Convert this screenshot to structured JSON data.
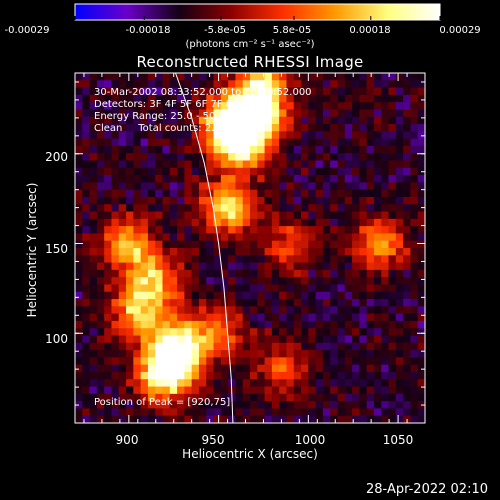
{
  "colorbar": {
    "ticks": [
      "-0.00029",
      "-0.00018",
      "-5.8e-05",
      "5.8e-05",
      "0.00018",
      "0.00029"
    ],
    "tick_values": [
      -0.00029,
      -0.00018,
      -5.8e-05,
      5.8e-05,
      0.00018,
      0.00029
    ],
    "range": [
      -0.00029,
      0.00029
    ],
    "units": "(photons cm⁻² s⁻¹ asec⁻²)",
    "colors": [
      "#0000ff",
      "#6a00c8",
      "#140014",
      "#8c0000",
      "#ff3000",
      "#ff9a00",
      "#ffff80",
      "#ffffff"
    ]
  },
  "title": "Reconstructed RHESSI Image",
  "info": {
    "time": "30-Mar-2002 08:33:52.000 to 08:39:52.000",
    "detectors": "Detectors: 3F 4F 5F 6F 7F 8F, Att 0",
    "energy": "Energy Range: 25.0 - 50.0 keV",
    "clean": "Clean     Total counts: 2.51E+03"
  },
  "peak": "Position of Peak = [920,75]",
  "footer_timestamp": "28-Apr-2022 02:10",
  "chart_data": {
    "type": "heatmap",
    "title": "Reconstructed RHESSI Image",
    "xlabel": "Heliocentric X (arcsec)",
    "ylabel": "Heliocentric Y (arcsec)",
    "xlim": [
      870,
      1065
    ],
    "ylim": [
      50,
      245
    ],
    "xticks": [
      900,
      950,
      1000,
      1050
    ],
    "yticks": [
      100,
      150,
      200
    ],
    "xtick_labels": [
      "900",
      "950",
      "1000",
      "1050"
    ],
    "ytick_labels": [
      "100",
      "150",
      "200"
    ],
    "peak_position": [
      920,
      75
    ],
    "limb_curve": {
      "x": [
        926,
        935,
        942,
        947,
        950,
        953,
        955,
        957,
        958
      ],
      "y": [
        245,
        220,
        195,
        170,
        150,
        125,
        100,
        75,
        50
      ]
    },
    "hot_regions": [
      {
        "x": 920,
        "y": 78,
        "intensity": 1.0
      },
      {
        "x": 928,
        "y": 92,
        "intensity": 0.8
      },
      {
        "x": 955,
        "y": 218,
        "intensity": 0.85
      },
      {
        "x": 972,
        "y": 222,
        "intensity": 0.8
      },
      {
        "x": 962,
        "y": 205,
        "intensity": 0.75
      },
      {
        "x": 955,
        "y": 170,
        "intensity": 0.7
      },
      {
        "x": 900,
        "y": 150,
        "intensity": 0.6
      },
      {
        "x": 905,
        "y": 112,
        "intensity": 0.65
      },
      {
        "x": 915,
        "y": 130,
        "intensity": 0.55
      },
      {
        "x": 950,
        "y": 100,
        "intensity": 0.45
      },
      {
        "x": 985,
        "y": 80,
        "intensity": 0.4
      },
      {
        "x": 1040,
        "y": 150,
        "intensity": 0.55
      },
      {
        "x": 990,
        "y": 150,
        "intensity": 0.4
      },
      {
        "x": 975,
        "y": 240,
        "intensity": 0.6
      }
    ]
  }
}
